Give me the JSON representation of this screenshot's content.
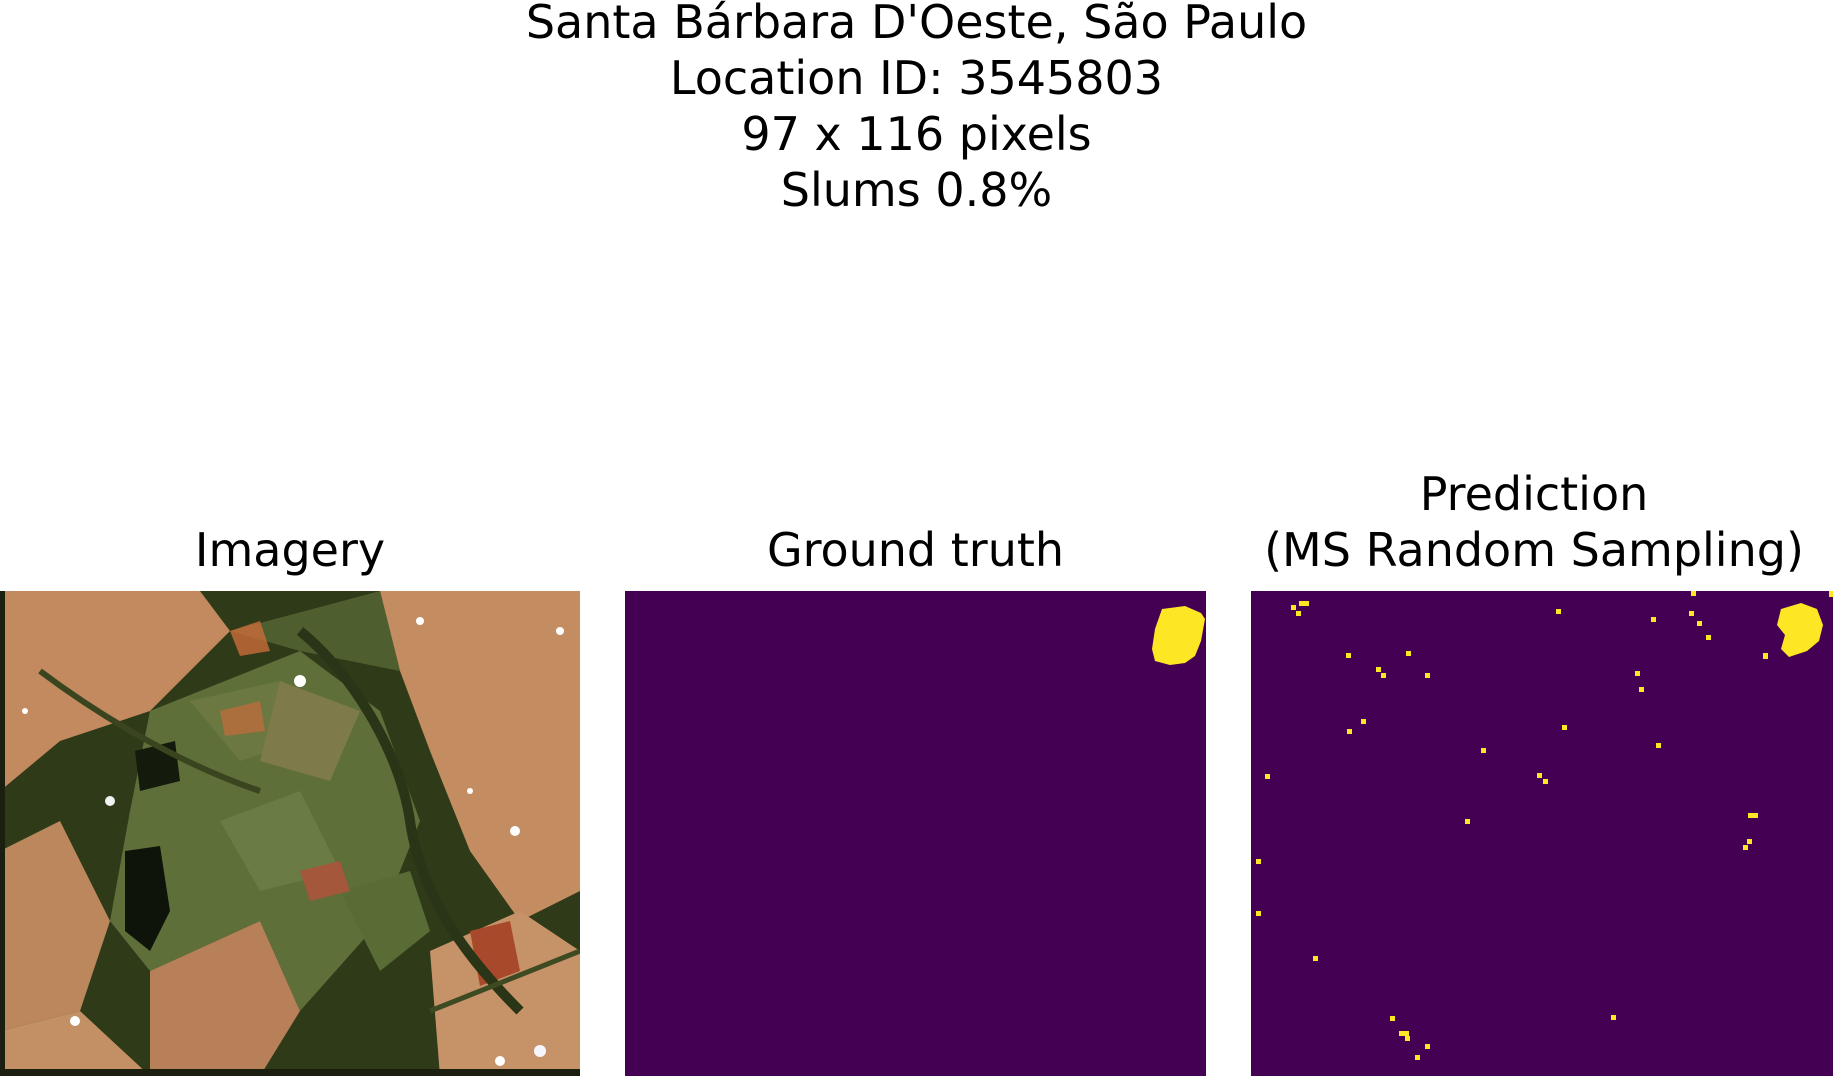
{
  "figure": {
    "title_lines": [
      "Santa Bárbara D'Oeste, São Paulo",
      "Location ID: 3545803",
      "97 x 116 pixels",
      "Slums 0.8%"
    ]
  },
  "panels": [
    {
      "title_lines": [
        "Imagery"
      ],
      "content": "satellite-imagery"
    },
    {
      "title_lines": [
        "Ground truth"
      ],
      "content": "binary-mask"
    },
    {
      "title_lines": [
        "Prediction",
        "(MS Random Sampling)"
      ],
      "content": "binary-mask"
    }
  ],
  "colors": {
    "background_class": "#440154",
    "slum_class": "#fde725"
  }
}
